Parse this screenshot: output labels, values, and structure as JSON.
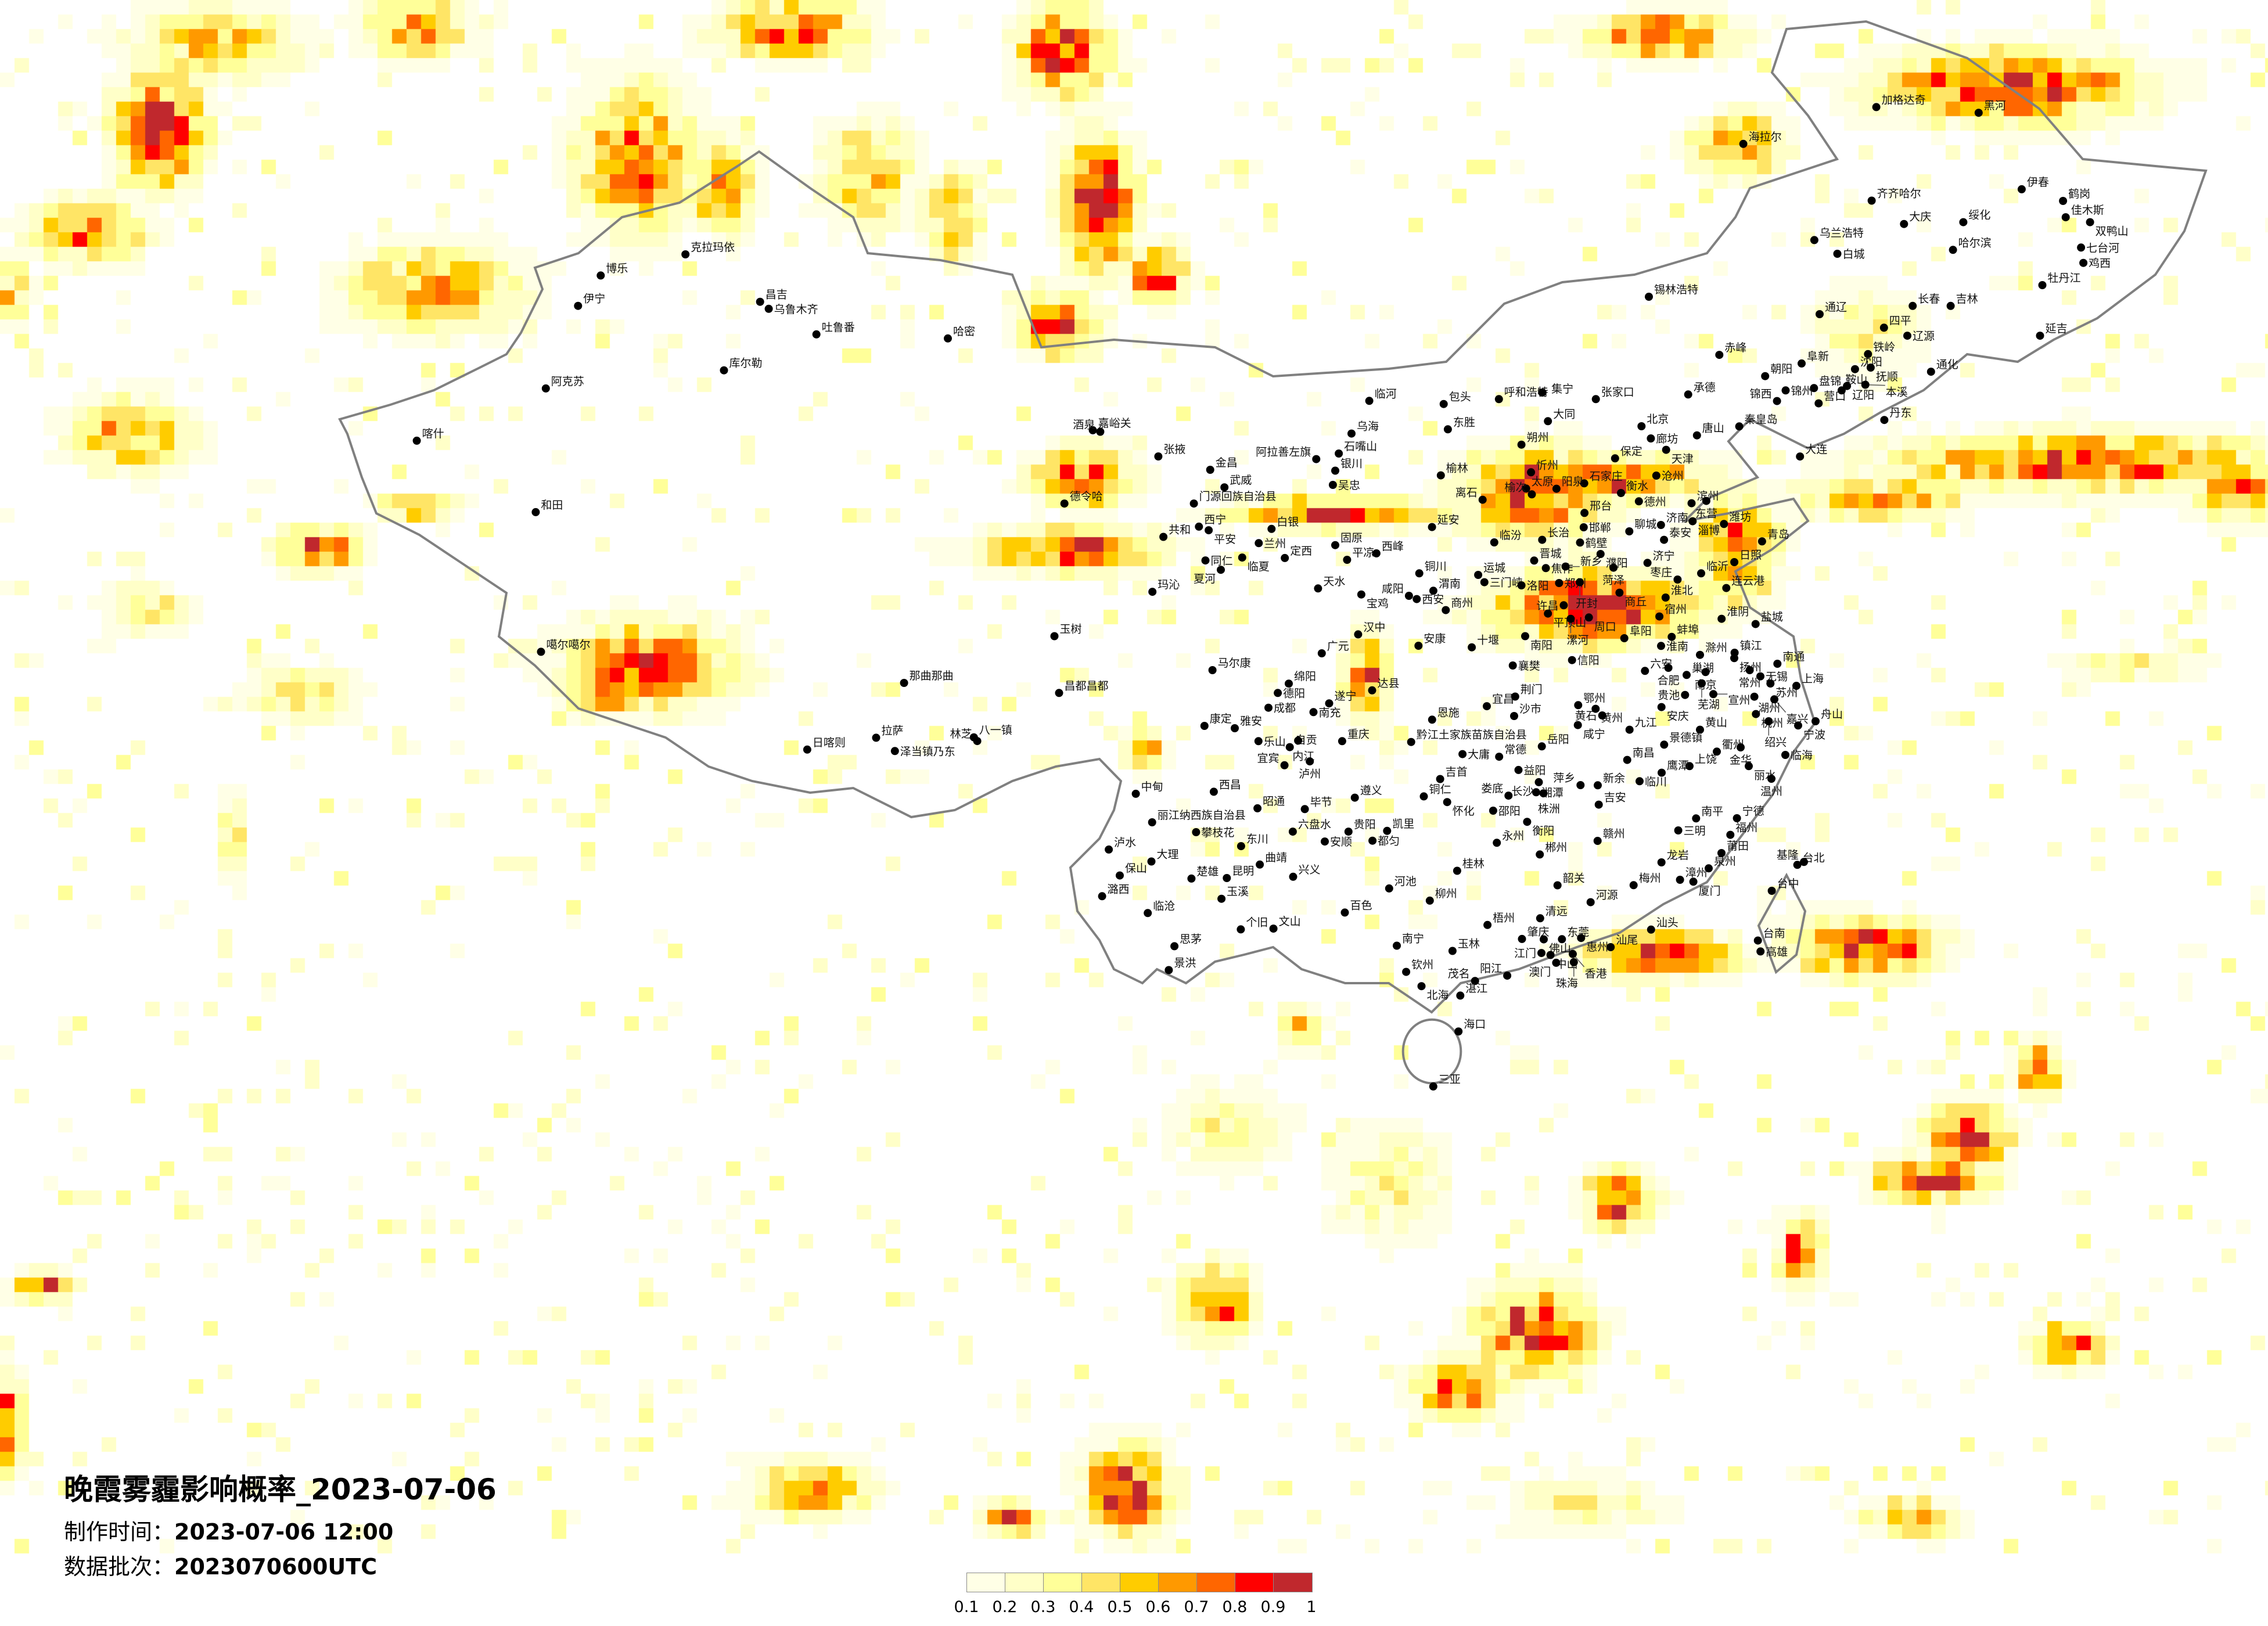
{
  "title": "晚霞雾霾影响概率_2023-07-06",
  "made_time_label": "制作时间：",
  "made_time": "2023-07-06 12:00",
  "batch_label": "数据批次：",
  "batch": "2023070600UTC",
  "legend": {
    "ticks": [
      "0.1",
      "0.2",
      "0.3",
      "0.4",
      "0.5",
      "0.6",
      "0.7",
      "0.8",
      "0.9",
      "1"
    ],
    "colors": [
      "#FFFFE6",
      "#FFFFC8",
      "#FFFF99",
      "#FFE566",
      "#FFCC00",
      "#FF9900",
      "#FF6600",
      "#FF0000",
      "#C0282D"
    ]
  },
  "map_colors": {
    "border": "#808080",
    "city_dot": "#000000",
    "background": "#FFFFFF"
  },
  "cities": [
    "呼和浩特",
    "集宁",
    "包头",
    "张家口",
    "承德",
    "东胜",
    "大同",
    "北京",
    "廊坊",
    "唐山",
    "秦皇岛",
    "天津",
    "朔州",
    "保定",
    "忻州",
    "榆林",
    "沧州",
    "石家庄",
    "阳泉",
    "太原",
    "榆次",
    "衡水",
    "离石",
    "德州",
    "滨州",
    "东营",
    "邢台",
    "淄博",
    "潍坊",
    "济南",
    "延安",
    "聊城",
    "邯郸",
    "临汾",
    "长治",
    "泰安",
    "青岛",
    "鹤壁",
    "濮阳",
    "晋城",
    "日照",
    "济宁",
    "焦作",
    "新乡",
    "菏泽",
    "临沂",
    "铜川",
    "运城",
    "三门峡",
    "洛阳",
    "郑州",
    "开封",
    "枣庄",
    "连云港",
    "渭南",
    "咸阳",
    "西安",
    "商丘",
    "淮北",
    "商州",
    "许昌",
    "平顶山",
    "宿州",
    "漯河",
    "周口",
    "淮阴",
    "盐城",
    "朝阳",
    "阜阳",
    "蚌埠",
    "淮南",
    "信阳",
    "滁州",
    "镇江",
    "扬州",
    "南通",
    "六安",
    "合肥",
    "巢湖",
    "南京",
    "常州",
    "无锡",
    "芜湖",
    "苏州",
    "上海",
    "宣州",
    "湖州",
    "嘉兴",
    "鄂州",
    "黄州",
    "黄石",
    "贵池",
    "安庆",
    "杭州",
    "咸宁",
    "九江",
    "绍兴",
    "宁波",
    "舟山",
    "黄山",
    "景德镇",
    "衢州",
    "金华",
    "临海",
    "南昌",
    "上饶",
    "鹰潭",
    "丽水",
    "临川",
    "温州",
    "新余",
    "萍乡",
    "吉安",
    "南平",
    "宁德",
    "三明",
    "福州",
    "赣州",
    "莆田",
    "龙岩",
    "泉州",
    "台北",
    "基隆",
    "漳州",
    "厦门",
    "梅州",
    "台中",
    "河源",
    "韶关",
    "清远",
    "肇庆",
    "佛山",
    "东莞",
    "惠州",
    "汕头",
    "汕尾",
    "江门",
    "中山",
    "香港",
    "澳门",
    "珠海",
    "台南",
    "高雄",
    "阳江",
    "茂名",
    "湛江",
    "海口",
    "三亚",
    "玉树",
    "汉中",
    "安康",
    "十堰",
    "南阳",
    "广元",
    "襄樊",
    "马尔康",
    "昌都昌都",
    "绵阳",
    "德阳",
    "达县",
    "荆门",
    "成都",
    "遂宁",
    "宜昌",
    "南充",
    "沙市",
    "恩施",
    "康定",
    "雅安",
    "乐山",
    "自贡",
    "内江",
    "重庆",
    "黔江土家族苗族自治县",
    "岳阳",
    "大庸",
    "常德",
    "宜宾",
    "泸州",
    "益阳",
    "吉首",
    "长沙",
    "中甸",
    "西昌",
    "铜仁",
    "遵义",
    "湘潭",
    "株洲",
    "娄底",
    "怀化",
    "昭通",
    "毕节",
    "邵阳",
    "衡阳",
    "丽江纳西族自治县",
    "攀枝花",
    "六盘水",
    "贵阳",
    "凯里",
    "安顺",
    "都匀",
    "永州",
    "泸水",
    "东川",
    "郴州",
    "大理",
    "曲靖",
    "桂林",
    "保山",
    "楚雄",
    "昆明",
    "兴义",
    "潞西",
    "玉溪",
    "临沧",
    "百色",
    "个旧",
    "文山",
    "思茅",
    "景洪",
    "河池",
    "柳州",
    "南宁",
    "玉林",
    "钦州",
    "北海",
    "梧州",
    "克拉玛依",
    "博乐",
    "伊宁",
    "昌吉",
    "乌鲁木齐",
    "吐鲁番",
    "哈密",
    "库尔勒",
    "阿克苏",
    "喀什",
    "和田",
    "噶尔噶尔",
    "那曲那曲",
    "拉萨",
    "日喀则",
    "泽当镇乃东",
    "八一镇",
    "林芝",
    "临河",
    "嘉峪关",
    "酒泉",
    "乌海",
    "张掖",
    "石嘴山",
    "阿拉善左旗",
    "金昌",
    "银川",
    "吴忠",
    "武威",
    "德令哈",
    "门源回族自治县",
    "西宁",
    "平安",
    "白银",
    "共和",
    "兰州",
    "固原",
    "西峰",
    "平凉",
    "临夏",
    "同仁",
    "定西",
    "夏河",
    "天水",
    "宝鸡",
    "玛沁",
    "加格达奇",
    "黑河",
    "海拉尔",
    "伊春",
    "齐齐哈尔",
    "鹤岗",
    "佳木斯",
    "大庆",
    "绥化",
    "双鸭山",
    "乌兰浩特",
    "白城",
    "哈尔滨",
    "七台河",
    "鸡西",
    "牡丹江",
    "长春",
    "吉林",
    "通辽",
    "四平",
    "辽源",
    "延吉",
    "赤峰",
    "铁岭",
    "阜新",
    "沈阳",
    "抚顺",
    "通化",
    "锦州",
    "锦西",
    "盘锦",
    "营口",
    "鞍山",
    "辽阳",
    "本溪",
    "丹东",
    "大连",
    "锡林浩特"
  ]
}
